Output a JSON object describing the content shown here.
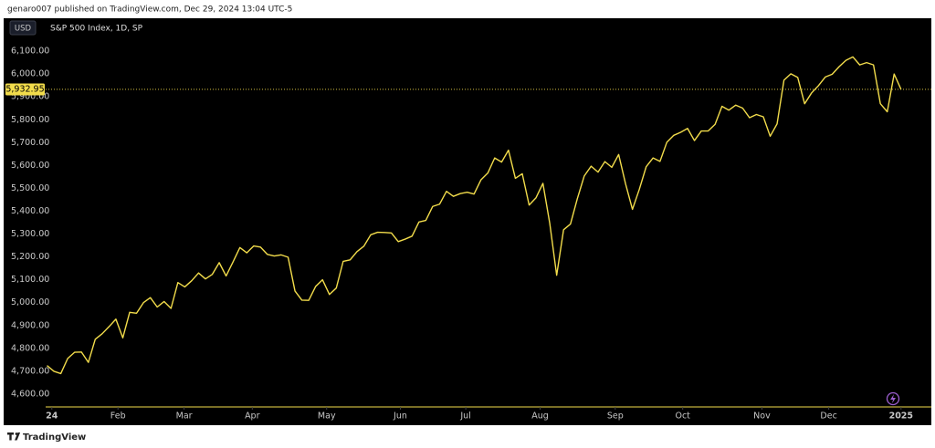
{
  "header": "genaro007 published on TradingView.com, Dec 29, 2024 13:04 UTC-5",
  "footer": "TradingView",
  "chart_data": {
    "type": "line",
    "title": "S&P 500 Index, 1D, SP",
    "currency": "USD",
    "price_label": "5,932.95",
    "color": "#f2dc4b",
    "values": [
      4725,
      4700,
      4690,
      4756,
      4783,
      4784,
      4739,
      4840,
      4864,
      4895,
      4928,
      4846,
      4958,
      4954,
      5000,
      5022,
      4981,
      5005,
      4975,
      5088,
      5069,
      5096,
      5130,
      5104,
      5124,
      5175,
      5117,
      5178,
      5241,
      5218,
      5248,
      5243,
      5211,
      5204,
      5209,
      5199,
      5051,
      5011,
      5010,
      5071,
      5100,
      5036,
      5064,
      5181,
      5187,
      5223,
      5247,
      5297,
      5308,
      5307,
      5305,
      5267,
      5278,
      5291,
      5353,
      5360,
      5421,
      5431,
      5487,
      5465,
      5477,
      5483,
      5475,
      5537,
      5567,
      5633,
      5615,
      5667,
      5544,
      5564,
      5427,
      5459,
      5522,
      5346,
      5120,
      5319,
      5344,
      5455,
      5554,
      5597,
      5571,
      5617,
      5592,
      5648,
      5520,
      5408,
      5496,
      5595,
      5633,
      5618,
      5702,
      5732,
      5745,
      5762,
      5709,
      5751,
      5751,
      5780,
      5859,
      5842,
      5864,
      5851,
      5809,
      5823,
      5813,
      5728,
      5782,
      5973,
      6001,
      5985,
      5870,
      5917,
      5949,
      5987,
      5999,
      6032,
      6060,
      6075,
      6040,
      6050,
      6040,
      5870,
      5835,
      6000,
      5932.95
    ],
    "xlim": [
      -0.2,
      128.4
    ],
    "xticks": [
      {
        "value": 0.7,
        "label": "24"
      },
      {
        "value": 10.3,
        "label": "Feb"
      },
      {
        "value": 19.9,
        "label": "Mar"
      },
      {
        "value": 29.8,
        "label": "Apr"
      },
      {
        "value": 40.6,
        "label": "May"
      },
      {
        "value": 51.3,
        "label": "Jun"
      },
      {
        "value": 60.8,
        "label": "Jul"
      },
      {
        "value": 71.6,
        "label": "Aug"
      },
      {
        "value": 82.5,
        "label": "Sep"
      },
      {
        "value": 92.3,
        "label": "Oct"
      },
      {
        "value": 103.8,
        "label": "Nov"
      },
      {
        "value": 113.5,
        "label": "Dec"
      },
      {
        "value": 124.0,
        "label": "2025"
      }
    ],
    "ylim": [
      4544,
      6244
    ],
    "yticks": [
      {
        "value": 4600,
        "label": "4,600.00"
      },
      {
        "value": 4700,
        "label": "4,700.00"
      },
      {
        "value": 4800,
        "label": "4,800.00"
      },
      {
        "value": 4900,
        "label": "4,900.00"
      },
      {
        "value": 5000,
        "label": "5,000.00"
      },
      {
        "value": 5100,
        "label": "5,100.00"
      },
      {
        "value": 5200,
        "label": "5,200.00"
      },
      {
        "value": 5300,
        "label": "5,300.00"
      },
      {
        "value": 5400,
        "label": "5,400.00"
      },
      {
        "value": 5500,
        "label": "5,500.00"
      },
      {
        "value": 5600,
        "label": "5,600.00"
      },
      {
        "value": 5700,
        "label": "5,700.00"
      },
      {
        "value": 5800,
        "label": "5,800.00"
      },
      {
        "value": 5900,
        "label": "5,900.00"
      },
      {
        "value": 6000,
        "label": "6,000.00"
      },
      {
        "value": 6100,
        "label": "6,100.00"
      }
    ],
    "grid": false
  }
}
